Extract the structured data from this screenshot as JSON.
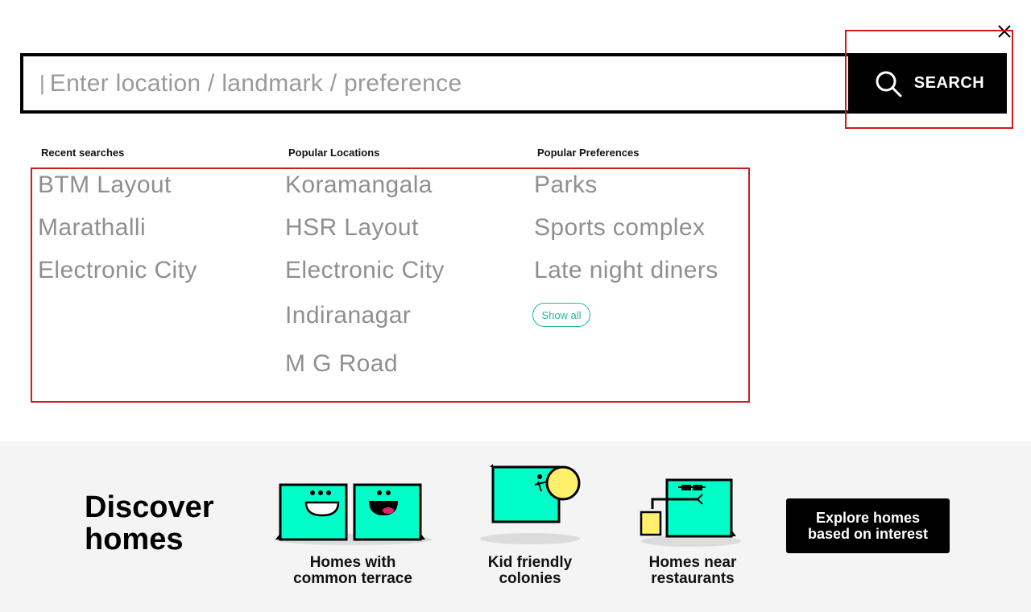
{
  "search": {
    "placeholder": "Enter location / landmark / preference",
    "caret": "|",
    "button_label": "SEARCH"
  },
  "columns": {
    "recent": {
      "heading": "Recent searches",
      "items": [
        "BTM Layout",
        "Marathalli",
        "Electronic City"
      ]
    },
    "locations": {
      "heading": "Popular Locations",
      "items": [
        "Koramangala",
        "HSR Layout",
        "Electronic City",
        "Indiranagar",
        "M G Road"
      ]
    },
    "preferences": {
      "heading": "Popular Preferences",
      "items": [
        "Parks",
        "Sports complex",
        "Late night diners"
      ],
      "show_all": "Show all"
    }
  },
  "discover": {
    "title": "Discover homes",
    "categories": [
      {
        "label": "Homes with\ncommon terrace",
        "icon": "terrace-homes-icon"
      },
      {
        "label": "Kid friendly\ncolonies",
        "icon": "kid-friendly-icon"
      },
      {
        "label": "Homes near\nrestaurants",
        "icon": "restaurants-icon"
      }
    ],
    "cta": "Explore homes\nbased on interest"
  },
  "colors": {
    "accent_teal": "#00ffc8",
    "link_teal": "#1fb89a",
    "highlight_red": "#d11a1a",
    "text_gray": "#8f8f8f"
  }
}
